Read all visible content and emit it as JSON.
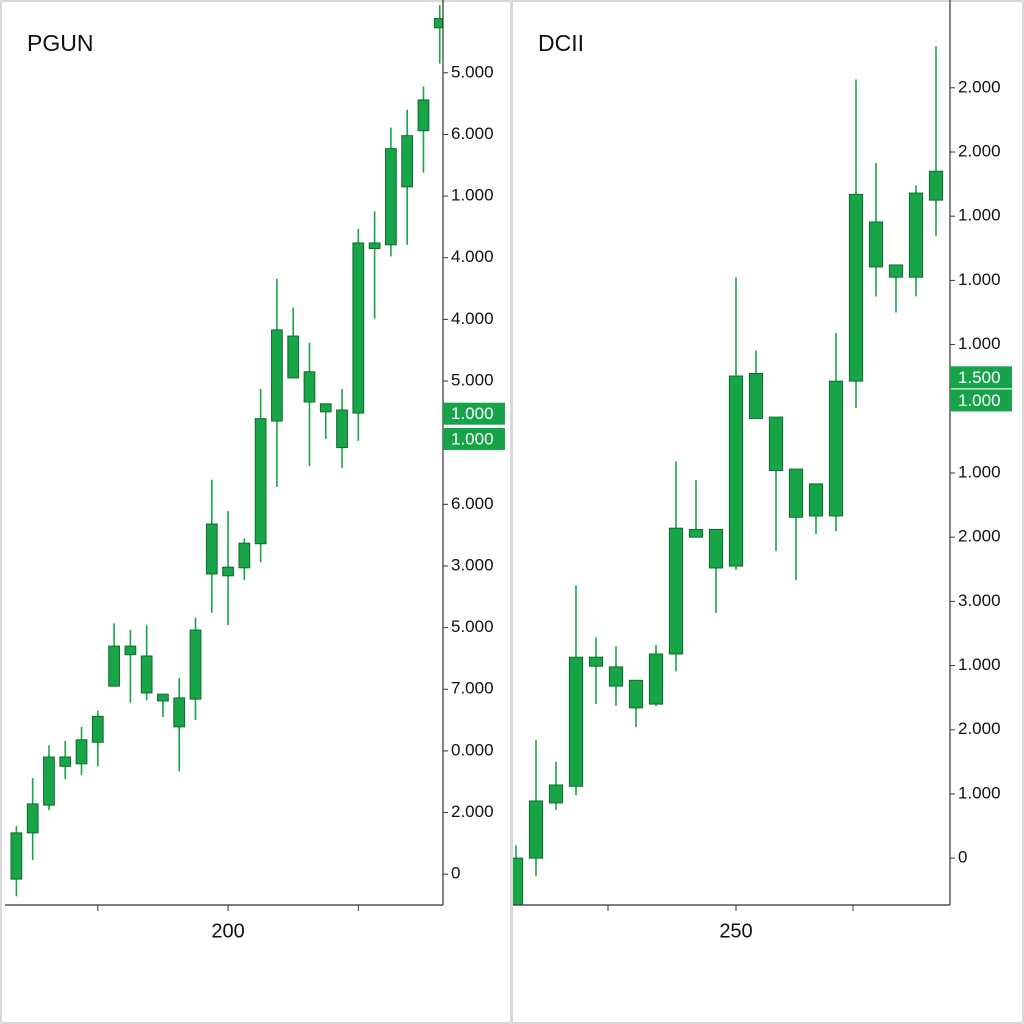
{
  "chart_data": [
    {
      "type": "candlestick",
      "title": "PGUN",
      "x": [
        187,
        188,
        189,
        190,
        191,
        192,
        193,
        194,
        195,
        196,
        197,
        198,
        199,
        200,
        201,
        202,
        203,
        204,
        205,
        206,
        207,
        208,
        209,
        210,
        211,
        212,
        213
      ],
      "open": [
        -0.08,
        0.67,
        1.12,
        1.75,
        1.79,
        2.14,
        3.05,
        3.56,
        2.94,
        2.81,
        2.39,
        2.84,
        4.87,
        4.84,
        4.97,
        5.36,
        7.35,
        8.05,
        7.66,
        7.5,
        6.92,
        7.48,
        10.15,
        10.21,
        11.15,
        12.06,
        13.73
      ],
      "high": [
        0.78,
        1.56,
        2.09,
        2.16,
        2.39,
        2.65,
        4.07,
        3.96,
        4.04,
        2.92,
        3.18,
        4.16,
        6.4,
        5.89,
        5.45,
        7.87,
        9.66,
        9.19,
        8.62,
        7.63,
        7.87,
        10.47,
        10.75,
        12.11,
        12.4,
        12.78,
        14.1
      ],
      "low": [
        -0.36,
        0.23,
        1.04,
        1.54,
        1.61,
        1.75,
        3.05,
        2.78,
        2.82,
        2.55,
        1.67,
        2.5,
        4.24,
        4.04,
        4.77,
        5.06,
        6.28,
        8.05,
        6.62,
        7.06,
        6.59,
        7.03,
        9.01,
        10.02,
        10.21,
        11.38,
        13.15
      ],
      "close": [
        0.67,
        1.14,
        1.9,
        1.9,
        2.18,
        2.56,
        3.7,
        3.7,
        3.54,
        2.92,
        2.86,
        3.96,
        5.68,
        4.98,
        5.37,
        7.39,
        8.83,
        8.73,
        8.15,
        7.63,
        7.53,
        10.24,
        10.24,
        11.77,
        11.98,
        12.56,
        13.88
      ],
      "color": "#17a548",
      "edge_color": "#0d6b2e",
      "xlim": [
        186.3,
        213.2
      ],
      "xticks": [
        200
      ],
      "minor_xticks": [
        192,
        208
      ],
      "ylim": [
        -0.5,
        14.1
      ],
      "yticks": [
        0,
        {
          "value": 1,
          "label": "2.000"
        },
        {
          "value": 2,
          "label": "0.000"
        },
        {
          "value": 3,
          "label": "7.000"
        },
        {
          "value": 4,
          "label": "5.000"
        },
        {
          "value": 5,
          "label": "3.000"
        },
        {
          "value": 6,
          "label": "6.000"
        },
        {
          "value": 8,
          "label": "5.000"
        },
        {
          "value": 9,
          "label": "4.000"
        },
        {
          "value": 10,
          "label": "4.000"
        },
        {
          "value": 11,
          "label": "1.000"
        },
        {
          "value": 12,
          "label": "6.000"
        },
        {
          "value": 13,
          "label": "5.000"
        }
      ],
      "price_labels": [
        {
          "value": 7.47,
          "label": "1.000"
        },
        {
          "value": 7.06,
          "label": "1.000"
        }
      ]
    },
    {
      "type": "candlestick",
      "title": "DCII",
      "x": [
        239,
        240,
        241,
        242,
        243,
        244,
        245,
        246,
        247,
        248,
        249,
        250,
        251,
        252,
        253,
        254,
        255,
        256,
        257,
        258,
        259,
        260
      ],
      "open": [
        -0.73,
        0,
        0.86,
        1.12,
        2.99,
        2.68,
        2.34,
        2.4,
        3.18,
        5.0,
        4.52,
        4.55,
        6.85,
        6.04,
        5.31,
        5.33,
        5.33,
        7.43,
        9.21,
        9.05,
        9.05,
        10.25
      ],
      "high": [
        0.2,
        1.84,
        1.5,
        4.25,
        3.44,
        3.3,
        2.77,
        3.32,
        6.18,
        5.89,
        5.12,
        9.05,
        7.91,
        6.87,
        6.06,
        5.83,
        8.18,
        12.13,
        10.83,
        9.24,
        10.48,
        12.65
      ],
      "low": [
        -0.73,
        -0.28,
        0.75,
        0.98,
        2.4,
        2.37,
        2.04,
        2.37,
        2.91,
        5.0,
        3.82,
        4.49,
        6.85,
        4.78,
        4.33,
        5.05,
        5.09,
        7.01,
        8.75,
        8.5,
        8.75,
        9.69
      ],
      "close": [
        0,
        0.89,
        1.14,
        3.13,
        3.13,
        2.98,
        2.77,
        3.18,
        5.14,
        5.12,
        5.12,
        7.51,
        7.55,
        6.87,
        6.06,
        5.83,
        7.43,
        10.34,
        9.91,
        9.24,
        10.36,
        10.7
      ],
      "color": "#17a548",
      "edge_color": "#0d6b2e",
      "xlim": [
        238.85,
        260.7
      ],
      "xticks": [
        250
      ],
      "minor_xticks": [
        243.6,
        255.85
      ],
      "ylim": [
        -0.73,
        13.29
      ],
      "yticks": [
        0,
        {
          "value": 1,
          "label": "1.000"
        },
        {
          "value": 2,
          "label": "2.000"
        },
        {
          "value": 3,
          "label": "1.000"
        },
        {
          "value": 4,
          "label": "3.000"
        },
        {
          "value": 5,
          "label": "2.000"
        },
        {
          "value": 6,
          "label": "1.000"
        },
        {
          "value": 8,
          "label": "1.000"
        },
        {
          "value": 9,
          "label": "1.000"
        },
        {
          "value": 10,
          "label": "1.000"
        },
        {
          "value": 11,
          "label": "2.000"
        },
        {
          "value": 12,
          "label": "2.000"
        }
      ],
      "price_labels": [
        {
          "value": 7.49,
          "label": "1.500"
        },
        {
          "value": 7.13,
          "label": "1.000"
        }
      ]
    }
  ]
}
